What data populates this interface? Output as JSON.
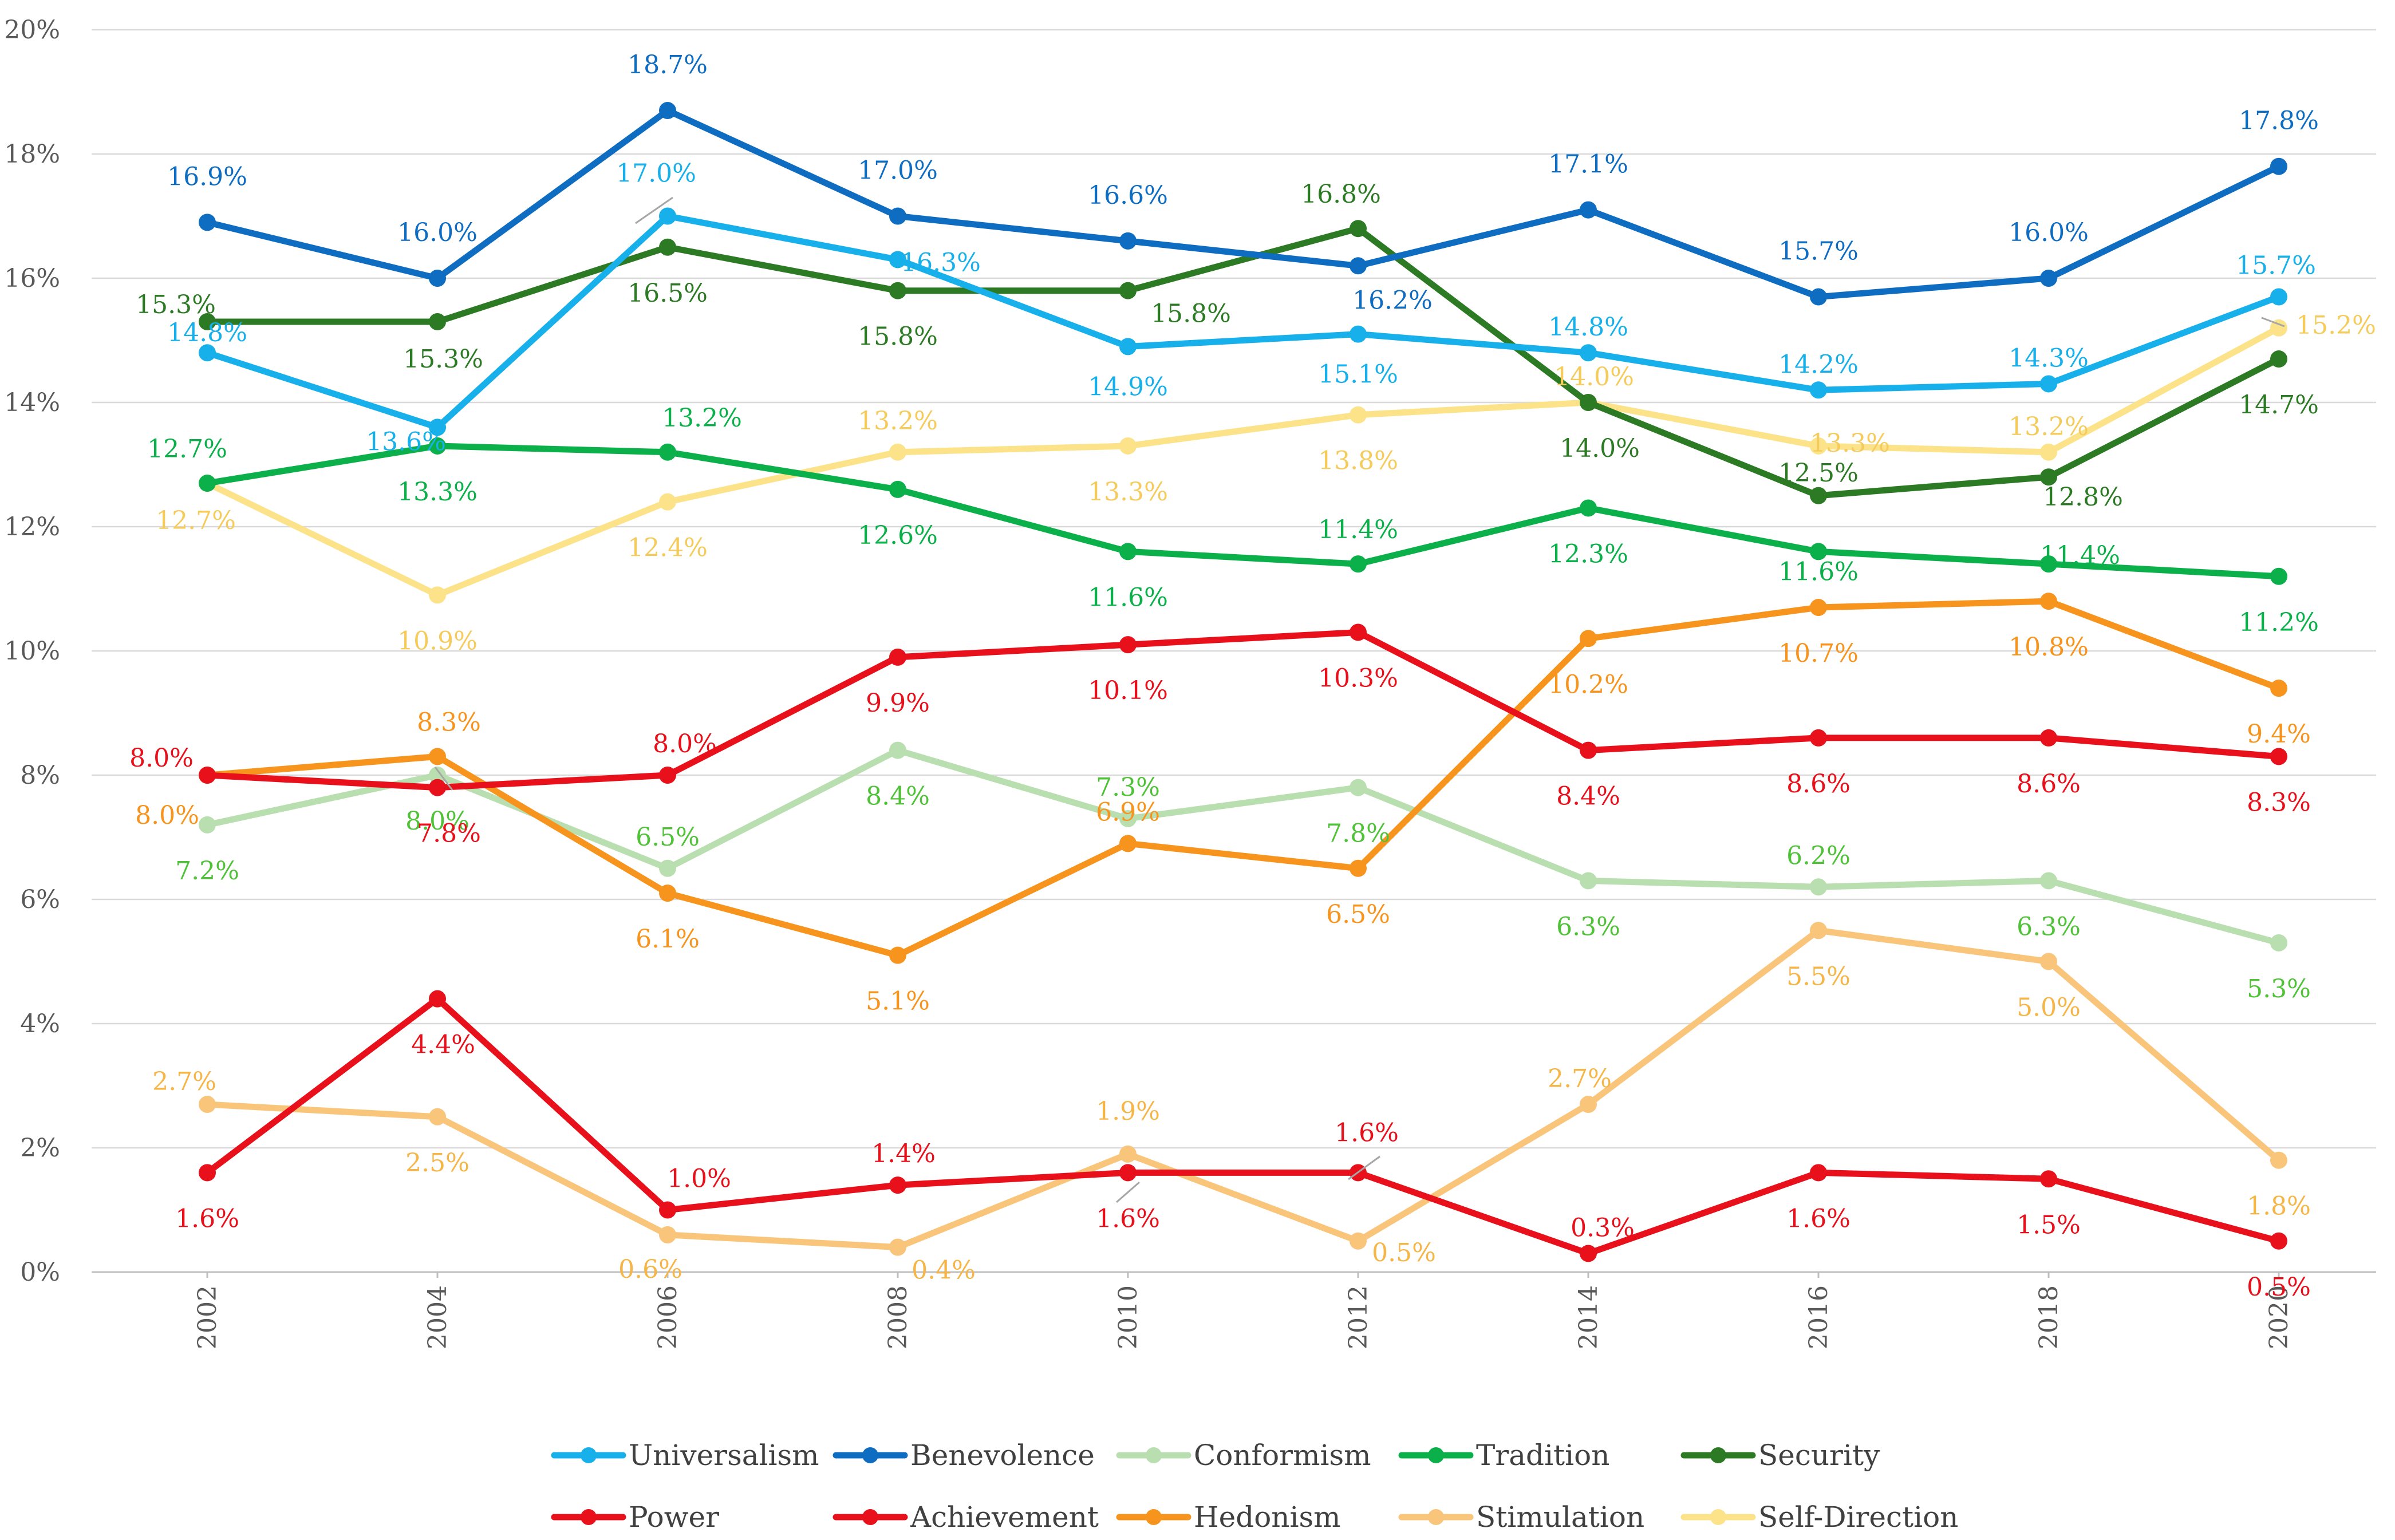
{
  "chart_data": {
    "type": "line",
    "title": "",
    "xlabel": "",
    "ylabel": "",
    "x": [
      "2002",
      "2004",
      "2006",
      "2008",
      "2010",
      "2012",
      "2014",
      "2016",
      "2018",
      "2020"
    ],
    "ylim": [
      0,
      20
    ],
    "yticks": [
      "0%",
      "2%",
      "4%",
      "6%",
      "8%",
      "10%",
      "12%",
      "14%",
      "16%",
      "18%",
      "20%"
    ],
    "grid": "horizontal",
    "legend_position": "bottom",
    "series": [
      {
        "name": "Universalism",
        "color": "#17B0EA",
        "values": [
          14.8,
          13.6,
          17.0,
          16.3,
          14.9,
          15.1,
          14.8,
          14.2,
          14.3,
          15.7
        ],
        "labels": [
          "14.8%",
          "13.6%",
          "17.0%",
          "16.3%",
          "14.9%",
          "15.1%",
          "14.8%",
          "14.2%",
          "14.3%",
          "15.7%"
        ]
      },
      {
        "name": "Benevolence",
        "color": "#0F6DC1",
        "values": [
          16.9,
          16.0,
          18.7,
          17.0,
          16.6,
          16.2,
          17.1,
          15.7,
          16.0,
          17.8
        ],
        "labels": [
          "16.9%",
          "16.0%",
          "18.7%",
          "17.0%",
          "16.6%",
          "16.2%",
          "17.1%",
          "15.7%",
          "16.0%",
          "17.8%"
        ]
      },
      {
        "name": "Conformism",
        "color": "#B9DFB0",
        "label_color": "#4FC238",
        "values": [
          7.2,
          8.0,
          6.5,
          8.4,
          7.3,
          7.8,
          6.3,
          6.2,
          6.3,
          5.3
        ],
        "labels": [
          "7.2%",
          "8.0%",
          "6.5%",
          "8.4%",
          "7.3%",
          "7.8%",
          "6.3%",
          "6.2%",
          "6.3%",
          "5.3%"
        ]
      },
      {
        "name": "Tradition",
        "color": "#0CB04A",
        "values": [
          12.7,
          13.3,
          13.2,
          12.6,
          11.6,
          11.4,
          12.3,
          11.6,
          11.4,
          11.2
        ],
        "labels": [
          "12.7%",
          "13.3%",
          "13.2%",
          "12.6%",
          "11.6%",
          "11.4%",
          "12.3%",
          "11.6%",
          "11.4%",
          "11.2%"
        ]
      },
      {
        "name": "Security",
        "color": "#2D7A25",
        "values": [
          15.3,
          15.3,
          16.5,
          15.8,
          15.8,
          16.8,
          14.0,
          12.5,
          12.8,
          14.7
        ],
        "labels": [
          "15.3%",
          "15.3%",
          "16.5%",
          "15.8%",
          "15.8%",
          "16.8%",
          "14.0%",
          "12.5%",
          "12.8%",
          "14.7%"
        ]
      },
      {
        "name": "Power",
        "color": "#E8101B",
        "values": [
          1.6,
          4.4,
          1.0,
          1.4,
          1.6,
          1.6,
          0.3,
          1.6,
          1.5,
          0.5
        ],
        "labels": [
          "1.6%",
          "4.4%",
          "1.0%",
          "1.4%",
          "1.6%",
          "1.6%",
          "0.3%",
          "1.6%",
          "1.5%",
          "0.5%"
        ]
      },
      {
        "name": "Achievement",
        "color": "#E8101B",
        "values": [
          8.0,
          7.8,
          8.0,
          9.9,
          10.1,
          10.3,
          8.4,
          8.6,
          8.6,
          8.3
        ],
        "labels": [
          "8.0%",
          "7.8%",
          "8.0%",
          "9.9%",
          "10.1%",
          "10.3%",
          "8.4%",
          "8.6%",
          "8.6%",
          "8.3%"
        ]
      },
      {
        "name": "Hedonism",
        "color": "#F7941D",
        "values": [
          8.0,
          8.3,
          6.1,
          5.1,
          6.9,
          6.5,
          10.2,
          10.7,
          10.8,
          9.4
        ],
        "labels": [
          "8.0%",
          "8.3%",
          "6.1%",
          "5.1%",
          "6.9%",
          "6.5%",
          "10.2%",
          "10.7%",
          "10.8%",
          "9.4%"
        ]
      },
      {
        "name": "Stimulation",
        "color": "#F9C57B",
        "label_color": "#F5B547",
        "values": [
          2.7,
          2.5,
          0.6,
          0.4,
          1.9,
          0.5,
          2.7,
          5.5,
          5.0,
          1.8
        ],
        "labels": [
          "2.7%",
          "2.5%",
          "0.6%",
          "0.4%",
          "1.9%",
          "0.5%",
          "2.7%",
          "5.5%",
          "5.0%",
          "1.8%"
        ]
      },
      {
        "name": "Self-Direction",
        "color": "#FCE38A",
        "label_color": "#F5CB5C",
        "values": [
          12.7,
          10.9,
          12.4,
          13.2,
          13.3,
          13.8,
          14.0,
          13.3,
          13.2,
          15.2
        ],
        "labels": [
          "12.7%",
          "10.9%",
          "12.4%",
          "13.2%",
          "13.3%",
          "13.8%",
          "14.0%",
          "13.3%",
          "13.2%",
          "15.2%"
        ]
      }
    ]
  }
}
